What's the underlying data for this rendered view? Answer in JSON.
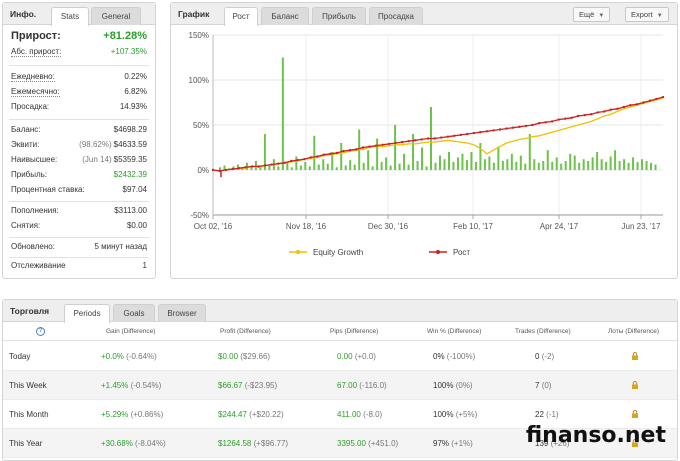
{
  "info": {
    "title": "Инфо.",
    "tabs": [
      "Stats",
      "General"
    ],
    "rows": {
      "growth": {
        "label": "Прирост:",
        "value": "+81.28%"
      },
      "abs_growth": {
        "label": "Абс. прирост:",
        "value": "+107.35%"
      },
      "daily": {
        "label": "Ежедневно:",
        "value": "0.22%"
      },
      "monthly": {
        "label": "Ежемесячно:",
        "value": "6.82%"
      },
      "drawdown": {
        "label": "Просадка:",
        "value": "14.93%"
      },
      "balance": {
        "label": "Баланс:",
        "value": "$4698.29"
      },
      "equity": {
        "label": "Эквити:",
        "sub": "(98.62%)",
        "value": "$4633.59"
      },
      "highest": {
        "label": "Наивысшее:",
        "sub": "(Jun 14)",
        "value": "$5359.35"
      },
      "profit": {
        "label": "Прибыль:",
        "value": "$2432.39"
      },
      "interest": {
        "label": "Процентная ставка:",
        "value": "$97.04"
      },
      "deposits": {
        "label": "Пополнения:",
        "value": "$3113.00"
      },
      "withdrawals": {
        "label": "Снятия:",
        "value": "$0.00"
      },
      "updated": {
        "label": "Обновлено:",
        "value": "5 минут назад"
      },
      "tracking": {
        "label": "Отслеживание",
        "value": "1"
      }
    }
  },
  "chart_panel": {
    "title": "График",
    "tabs": [
      "Рост",
      "Баланс",
      "Прибыль",
      "Просадка"
    ],
    "more_button": "Ещё",
    "export_button": "Export"
  },
  "chart_data": {
    "type": "line",
    "x_ticks": [
      "Oct 02, '16",
      "Nov 18, '16",
      "Dec 30, '16",
      "Feb 10, '17",
      "Apr 24, '17",
      "Jun 23, '17"
    ],
    "y_ticks": [
      "150%",
      "100%",
      "50%",
      "0%",
      "-50%"
    ],
    "ylim": [
      -50,
      150
    ],
    "grid": true,
    "legend_position": "bottom",
    "series": [
      {
        "name": "Equity Growth",
        "color": "#f0c000",
        "values": [
          0,
          -1,
          0,
          1,
          2,
          2,
          4,
          3,
          5,
          6,
          7,
          8,
          9,
          10,
          12,
          13,
          14,
          16,
          17,
          18,
          19,
          21,
          22,
          23,
          25,
          26,
          26,
          27,
          28,
          28,
          29,
          29,
          30,
          31,
          31,
          32,
          33,
          32,
          31,
          30,
          28,
          24,
          18,
          22,
          26,
          30,
          32,
          34,
          35,
          37,
          38,
          40,
          42,
          44,
          46,
          48,
          50,
          52,
          54,
          57,
          60,
          62,
          65,
          68,
          70,
          72,
          74,
          76,
          78,
          80
        ]
      },
      {
        "name": "Рост",
        "color": "#cc2222",
        "values": [
          0,
          -1,
          0,
          1,
          2,
          3,
          4,
          4,
          5,
          6,
          7,
          8,
          10,
          11,
          12,
          14,
          15,
          17,
          18,
          19,
          21,
          22,
          23,
          25,
          26,
          27,
          28,
          29,
          30,
          31,
          32,
          33,
          34,
          35,
          35,
          36,
          37,
          38,
          39,
          40,
          41,
          42,
          43,
          44,
          45,
          46,
          47,
          48,
          49,
          50,
          52,
          53,
          54,
          56,
          57,
          58,
          60,
          61,
          62,
          64,
          65,
          67,
          68,
          70,
          72,
          73,
          75,
          77,
          79,
          81
        ]
      }
    ],
    "bars": [
      3,
      5,
      2,
      4,
      6,
      3,
      8,
      4,
      10,
      5,
      40,
      6,
      12,
      4,
      125,
      8,
      3,
      15,
      5,
      9,
      4,
      38,
      6,
      12,
      7,
      20,
      3,
      30,
      5,
      11,
      6,
      45,
      8,
      22,
      4,
      35,
      9,
      14,
      5,
      50,
      7,
      18,
      6,
      40,
      10,
      25,
      4,
      70,
      8,
      16,
      12,
      20,
      9,
      14,
      18,
      11,
      20,
      9,
      30,
      12,
      15,
      8,
      26,
      10,
      12,
      18,
      9,
      16,
      7,
      40,
      12,
      8,
      10,
      22,
      9,
      14,
      7,
      10,
      18,
      16,
      8,
      12,
      10,
      14,
      20,
      12,
      9,
      15,
      22,
      10,
      12,
      8,
      14,
      9,
      12,
      10,
      8,
      6
    ]
  },
  "trading": {
    "title": "Торговля",
    "tabs": [
      "Periods",
      "Goals",
      "Browser"
    ],
    "columns": [
      "Gain (Difference)",
      "Profit (Difference)",
      "Pips (Difference)",
      "Win % (Difference)",
      "Trades (Difference)",
      "Лоты (Difference)"
    ],
    "rows": [
      {
        "period": "Today",
        "gain": "+0.0%",
        "gain_diff": "(-0.64%)",
        "profit": "$0.00",
        "profit_diff": "($29.66)",
        "pips": "0.00",
        "pips_diff": "(+0.0)",
        "win": "0%",
        "win_diff": "(-100%)",
        "trades": "0",
        "trades_diff": "(-2)"
      },
      {
        "period": "This Week",
        "gain": "+1.45%",
        "gain_diff": "(-0.54%)",
        "profit": "$66.67",
        "profit_diff": "(-$23.95)",
        "pips": "67.00",
        "pips_diff": "(-116.0)",
        "win": "100%",
        "win_diff": "(0%)",
        "trades": "7",
        "trades_diff": "(0)"
      },
      {
        "period": "This Month",
        "gain": "+5.29%",
        "gain_diff": "(+0.86%)",
        "profit": "$244.47",
        "profit_diff": "(+$20.22)",
        "pips": "411.00",
        "pips_diff": "(-8.0)",
        "win": "100%",
        "win_diff": "(+5%)",
        "trades": "22",
        "trades_diff": "(-1)"
      },
      {
        "period": "This Year",
        "gain": "+30.68%",
        "gain_diff": "(-8.04%)",
        "profit": "$1264.58",
        "profit_diff": "(+$96.77)",
        "pips": "3395.00",
        "pips_diff": "(+451.0)",
        "win": "97%",
        "win_diff": "(+1%)",
        "trades": "139",
        "trades_diff": "(+26)"
      }
    ]
  },
  "watermark": "finanso.net",
  "colors": {
    "green": "#2a9d2a",
    "bar": "#6cc24a",
    "equity": "#f0c000",
    "growth": "#cc2222"
  }
}
